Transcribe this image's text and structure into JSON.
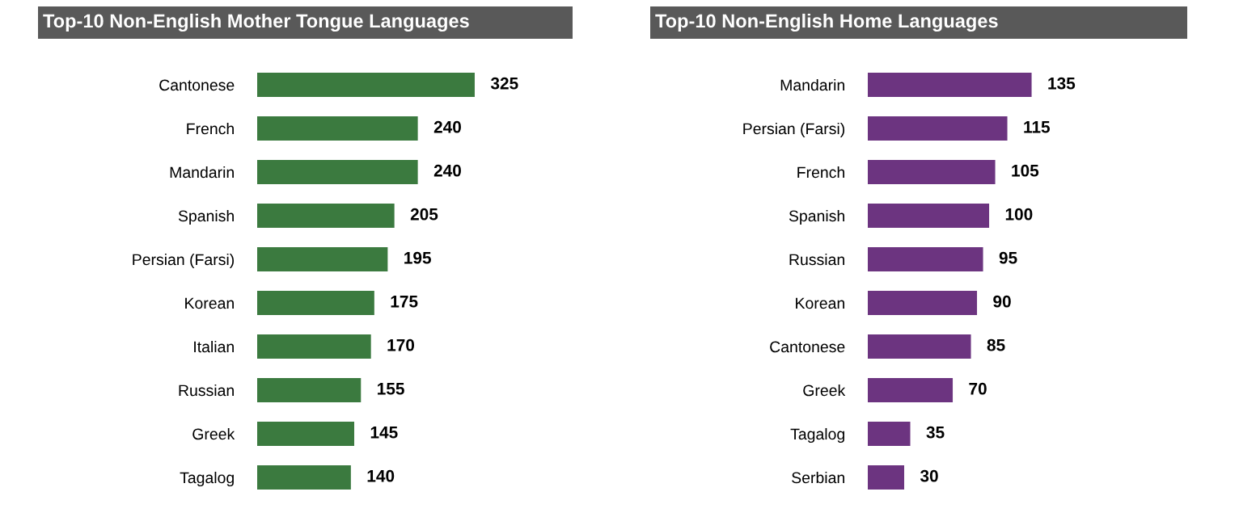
{
  "chart_data": [
    {
      "type": "bar",
      "orientation": "horizontal",
      "title": "Top-10 Non-English Mother Tongue Languages",
      "categories": [
        "Cantonese",
        "French",
        "Mandarin",
        "Spanish",
        "Persian (Farsi)",
        "Korean",
        "Italian",
        "Russian",
        "Greek",
        "Tagalog"
      ],
      "values": [
        325,
        240,
        240,
        205,
        195,
        175,
        170,
        155,
        145,
        140
      ],
      "color": "#3b7a3f",
      "data_labels": true
    },
    {
      "type": "bar",
      "orientation": "horizontal",
      "title": "Top-10 Non-English Home Languages",
      "categories": [
        "Mandarin",
        "Persian (Farsi)",
        "French",
        "Spanish",
        "Russian",
        "Korean",
        "Cantonese",
        "Greek",
        "Tagalog",
        "Serbian"
      ],
      "values": [
        135,
        115,
        105,
        100,
        95,
        90,
        85,
        70,
        35,
        30
      ],
      "color": "#6c3480",
      "data_labels": true
    }
  ]
}
